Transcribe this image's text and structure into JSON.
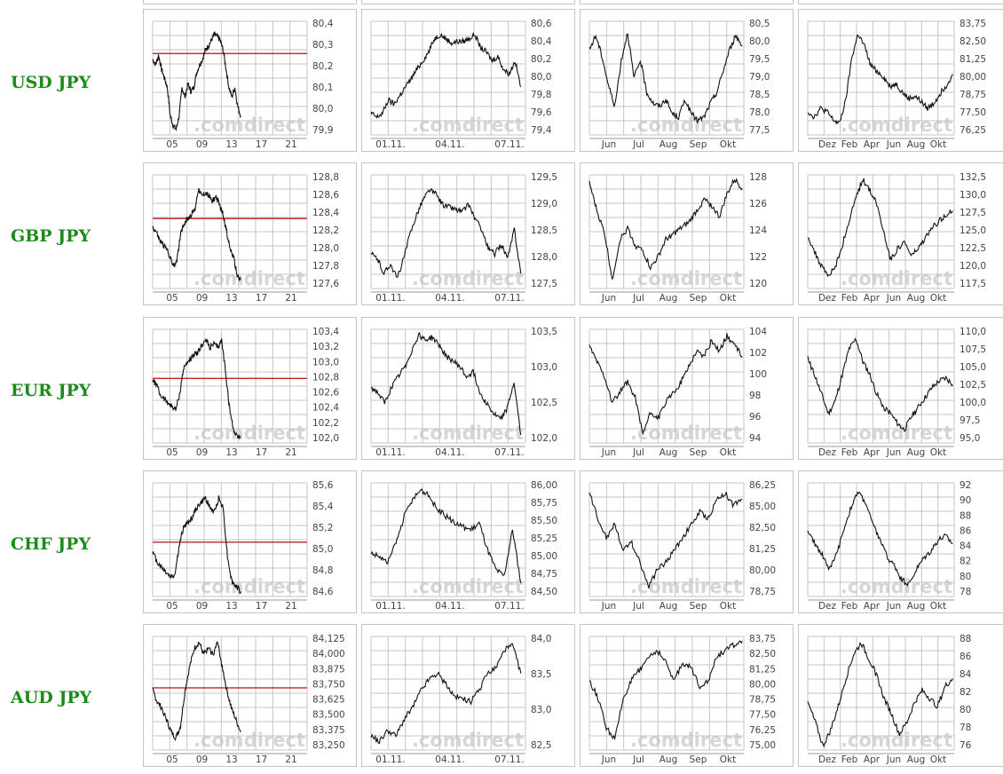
{
  "rows": [
    {
      "label": "USD JPY",
      "panels": [
        {
          "yticks": [
            "80,4",
            "80,3",
            "80,2",
            "80,1",
            "80,0",
            "79,9"
          ],
          "ymin": 79.85,
          "ymax": 80.45,
          "xticks": [
            "05",
            "09",
            "13",
            "17",
            "21"
          ],
          "ref": 80.28,
          "series": [
            80.25,
            80.22,
            80.27,
            80.2,
            80.15,
            80.1,
            79.95,
            79.9,
            79.88,
            79.95,
            80.1,
            80.05,
            80.12,
            80.08,
            80.1,
            80.18,
            80.22,
            80.25,
            80.3,
            80.32,
            80.35,
            80.38,
            80.37,
            80.35,
            80.3,
            80.2,
            80.1,
            80.05,
            80.1,
            80.0,
            79.95
          ]
        },
        {
          "yticks": [
            "80,6",
            "80,4",
            "80,2",
            "80,0",
            "79,8",
            "79,6",
            "79,4"
          ],
          "ymin": 79.35,
          "ymax": 80.65,
          "xticks": [
            "01.11.",
            "04.11.",
            "07.11."
          ],
          "series": [
            79.6,
            79.55,
            79.6,
            79.75,
            79.7,
            79.8,
            79.9,
            80.0,
            80.1,
            80.2,
            80.3,
            80.45,
            80.5,
            80.45,
            80.4,
            80.42,
            80.42,
            80.45,
            80.5,
            80.35,
            80.3,
            80.2,
            80.25,
            80.1,
            80.05,
            80.2,
            79.9
          ]
        },
        {
          "yticks": [
            "80,5",
            "80,0",
            "79,5",
            "79,0",
            "78,5",
            "78,0",
            "77,5"
          ],
          "ymin": 77.4,
          "ymax": 80.6,
          "xticks": [
            "Jun",
            "Jul",
            "Aug",
            "Sep",
            "Okt"
          ],
          "series": [
            79.8,
            80.2,
            79.6,
            78.8,
            78.2,
            79.5,
            80.3,
            79.0,
            79.5,
            78.6,
            78.3,
            78.2,
            78.4,
            78.0,
            77.9,
            78.4,
            78.0,
            77.8,
            77.9,
            78.3,
            78.6,
            79.2,
            79.8,
            80.2,
            79.9
          ]
        },
        {
          "yticks": [
            "83,75",
            "82,50",
            "81,25",
            "80,00",
            "78,75",
            "77,50",
            "76,25"
          ],
          "ymin": 75.9,
          "ymax": 84.1,
          "xticks": [
            "Dez",
            "Feb",
            "Apr",
            "Jun",
            "Aug",
            "Okt"
          ],
          "series": [
            77.6,
            77.2,
            77.8,
            77.6,
            77.0,
            76.7,
            78.3,
            81.5,
            83.2,
            82.3,
            80.9,
            80.5,
            80.1,
            79.4,
            79.6,
            79.0,
            78.5,
            78.7,
            78.3,
            77.8,
            78.2,
            78.9,
            79.5,
            80.3
          ]
        }
      ]
    },
    {
      "label": "GBP JPY",
      "panels": [
        {
          "yticks": [
            "128,8",
            "128,6",
            "128,4",
            "128,2",
            "128,0",
            "127,8",
            "127,6"
          ],
          "ymin": 127.55,
          "ymax": 128.85,
          "xticks": [
            "05",
            "09",
            "13",
            "17",
            "21"
          ],
          "ref": 128.35,
          "series": [
            128.25,
            128.2,
            128.1,
            128.05,
            128.0,
            127.9,
            127.8,
            127.9,
            128.2,
            128.3,
            128.35,
            128.4,
            128.45,
            128.7,
            128.6,
            128.65,
            128.6,
            128.55,
            128.6,
            128.5,
            128.4,
            128.2,
            128.0,
            127.9,
            127.7,
            127.65
          ]
        },
        {
          "yticks": [
            "129,5",
            "129,0",
            "128,5",
            "128,0",
            "127,5"
          ],
          "ymin": 127.3,
          "ymax": 129.6,
          "xticks": [
            "01.11.",
            "04.11.",
            "07.11."
          ],
          "series": [
            128.0,
            127.9,
            127.6,
            127.8,
            127.5,
            127.9,
            128.4,
            128.8,
            129.1,
            129.3,
            129.2,
            129.0,
            128.95,
            128.9,
            128.85,
            129.0,
            128.7,
            128.5,
            128.1,
            128.0,
            128.2,
            127.9,
            128.5,
            127.6
          ]
        },
        {
          "yticks": [
            "128",
            "126",
            "124",
            "122",
            "120"
          ],
          "ymin": 119.2,
          "ymax": 129.2,
          "xticks": [
            "Jun",
            "Jul",
            "Aug",
            "Sep",
            "Okt"
          ],
          "series": [
            128.5,
            126.0,
            124.0,
            120.0,
            123.5,
            124.5,
            123.0,
            122.5,
            121.0,
            122.0,
            123.5,
            124.0,
            124.5,
            125.0,
            126.0,
            127.0,
            126.5,
            125.5,
            127.5,
            128.8,
            128.0
          ]
        },
        {
          "yticks": [
            "132,5",
            "130,0",
            "127,5",
            "125,0",
            "122,5",
            "120,0",
            "117,5"
          ],
          "ymin": 116.8,
          "ymax": 133.2,
          "xticks": [
            "Dez",
            "Feb",
            "Apr",
            "Jun",
            "Aug",
            "Okt"
          ],
          "series": [
            124.5,
            122.0,
            120.0,
            118.5,
            120.0,
            123.0,
            126.5,
            130.0,
            132.5,
            131.0,
            129.0,
            125.0,
            121.0,
            122.5,
            123.5,
            121.5,
            122.5,
            124.0,
            125.5,
            126.5,
            127.5,
            128.0
          ]
        }
      ]
    },
    {
      "label": "EUR JPY",
      "panels": [
        {
          "yticks": [
            "103,4",
            "103,2",
            "103,0",
            "102,8",
            "102,6",
            "102,4",
            "102,2",
            "102,0"
          ],
          "ymin": 101.9,
          "ymax": 103.45,
          "xticks": [
            "05",
            "09",
            "13",
            "17",
            "21"
          ],
          "ref": 102.78,
          "series": [
            102.75,
            102.7,
            102.55,
            102.5,
            102.45,
            102.4,
            102.35,
            102.55,
            102.9,
            103.0,
            103.05,
            103.1,
            103.15,
            103.25,
            103.3,
            103.2,
            103.25,
            103.2,
            103.3,
            102.9,
            102.4,
            102.1,
            102.0,
            101.98
          ]
        },
        {
          "yticks": [
            "103,5",
            "103,0",
            "102,5",
            "102,0"
          ],
          "ymin": 101.85,
          "ymax": 104.0,
          "xticks": [
            "01.11.",
            "04.11.",
            "07.11."
          ],
          "series": [
            102.9,
            102.8,
            102.6,
            102.9,
            103.1,
            103.3,
            103.6,
            103.9,
            103.8,
            103.85,
            103.7,
            103.5,
            103.4,
            103.3,
            103.1,
            103.2,
            102.8,
            102.6,
            102.4,
            102.3,
            102.5,
            103.0,
            102.0
          ]
        },
        {
          "yticks": [
            "104",
            "102",
            "100",
            "98",
            "96",
            "94"
          ],
          "ymin": 93.6,
          "ymax": 104.6,
          "xticks": [
            "Jun",
            "Jul",
            "Aug",
            "Sep",
            "Okt"
          ],
          "series": [
            103.0,
            101.5,
            100.0,
            97.5,
            98.5,
            99.5,
            98.0,
            94.5,
            96.5,
            96.0,
            97.5,
            98.5,
            99.5,
            101.0,
            102.5,
            102.0,
            103.5,
            102.5,
            104.0,
            103.0,
            102.0
          ]
        },
        {
          "yticks": [
            "110,0",
            "107,5",
            "105,0",
            "102,5",
            "100,0",
            "97,5",
            "95,0"
          ],
          "ymin": 93.5,
          "ymax": 111.0,
          "xticks": [
            "Dez",
            "Feb",
            "Apr",
            "Jun",
            "Aug",
            "Okt"
          ],
          "series": [
            106.5,
            104.0,
            101.0,
            98.0,
            100.0,
            104.0,
            108.0,
            109.5,
            106.0,
            104.0,
            101.0,
            99.0,
            98.0,
            96.5,
            95.5,
            97.5,
            99.0,
            100.5,
            102.0,
            103.0,
            103.5,
            102.5
          ]
        }
      ]
    },
    {
      "label": "CHF JPY",
      "panels": [
        {
          "yticks": [
            "85,6",
            "85,4",
            "85,2",
            "85,0",
            "84,8",
            "84,6"
          ],
          "ymin": 84.5,
          "ymax": 85.65,
          "xticks": [
            "05",
            "09",
            "13",
            "17",
            "21"
          ],
          "ref": 85.05,
          "series": [
            84.95,
            84.85,
            84.8,
            84.75,
            84.7,
            84.72,
            85.0,
            85.2,
            85.25,
            85.3,
            85.4,
            85.45,
            85.5,
            85.4,
            85.35,
            85.5,
            85.4,
            84.9,
            84.65,
            84.6,
            84.55
          ]
        },
        {
          "yticks": [
            "86,00",
            "85,75",
            "85,50",
            "85,25",
            "85,00",
            "84,75",
            "84,50"
          ],
          "ymin": 84.4,
          "ymax": 86.1,
          "xticks": [
            "01.11.",
            "04.11.",
            "07.11."
          ],
          "series": [
            85.05,
            85.0,
            84.9,
            85.2,
            85.6,
            85.85,
            86.0,
            85.9,
            85.7,
            85.6,
            85.5,
            85.45,
            85.4,
            85.5,
            85.1,
            84.8,
            84.7,
            85.4,
            84.6
          ]
        },
        {
          "yticks": [
            "86,25",
            "85,00",
            "82,50",
            "81,25",
            "80,00",
            "78,75"
          ],
          "ymin": 77.8,
          "ymax": 86.8,
          "xticks": [
            "Jun",
            "Jul",
            "Aug",
            "Sep",
            "Okt"
          ],
          "series": [
            86.0,
            84.0,
            82.5,
            83.5,
            81.5,
            82.0,
            80.5,
            78.5,
            80.0,
            80.5,
            81.5,
            82.5,
            83.5,
            84.5,
            84.0,
            85.5,
            86.0,
            85.0,
            85.5
          ]
        },
        {
          "yticks": [
            "92",
            "90",
            "88",
            "86",
            "84",
            "82",
            "80",
            "78"
          ],
          "ymin": 77.3,
          "ymax": 92.7,
          "xticks": [
            "Dez",
            "Feb",
            "Apr",
            "Jun",
            "Aug",
            "Okt"
          ],
          "series": [
            86.0,
            84.5,
            83.0,
            81.0,
            83.0,
            86.5,
            89.5,
            91.5,
            90.0,
            87.0,
            85.0,
            82.5,
            81.5,
            79.5,
            79.0,
            81.0,
            82.5,
            83.5,
            85.0,
            85.5,
            84.5
          ]
        }
      ]
    },
    {
      "label": "AUD JPY",
      "panels": [
        {
          "yticks": [
            "84,125",
            "84,000",
            "83,875",
            "83,750",
            "83,625",
            "83,500",
            "83,375",
            "83,250"
          ],
          "ymin": 83.2,
          "ymax": 84.15,
          "xticks": [
            "05",
            "09",
            "13",
            "17",
            "21"
          ],
          "ref": 83.72,
          "series": [
            83.7,
            83.6,
            83.55,
            83.45,
            83.35,
            83.3,
            83.4,
            83.7,
            83.9,
            84.05,
            84.1,
            84.0,
            84.05,
            84.0,
            84.1,
            83.9,
            83.7,
            83.55,
            83.45,
            83.35
          ]
        },
        {
          "yticks": [
            "84,0",
            "83,5",
            "83,0",
            "82,5"
          ],
          "ymin": 82.15,
          "ymax": 84.15,
          "xticks": [
            "01.11.",
            "04.11.",
            "07.11."
          ],
          "series": [
            82.4,
            82.3,
            82.5,
            82.4,
            82.7,
            82.9,
            83.2,
            83.4,
            83.5,
            83.3,
            83.1,
            83.05,
            83.0,
            83.2,
            83.5,
            83.6,
            83.9,
            84.0,
            83.5
          ]
        },
        {
          "yticks": [
            "83,75",
            "82,50",
            "81,25",
            "80,00",
            "78,75",
            "77,50",
            "76,25",
            "75,00"
          ],
          "ymin": 74.6,
          "ymax": 84.2,
          "xticks": [
            "Jun",
            "Jul",
            "Aug",
            "Sep",
            "Okt"
          ],
          "series": [
            80.5,
            79.0,
            76.5,
            75.5,
            79.0,
            80.5,
            81.5,
            82.5,
            83.0,
            82.0,
            80.5,
            82.0,
            81.5,
            80.0,
            80.5,
            82.5,
            83.0,
            83.5,
            83.8
          ]
        },
        {
          "yticks": [
            "88",
            "86",
            "84",
            "82",
            "80",
            "78",
            "76"
          ],
          "ymin": 74.5,
          "ymax": 88.8,
          "xticks": [
            "Dez",
            "Feb",
            "Apr",
            "Jun",
            "Aug",
            "Okt"
          ],
          "series": [
            80.5,
            78.0,
            75.0,
            77.0,
            80.0,
            83.5,
            86.5,
            88.0,
            86.0,
            84.0,
            81.0,
            79.0,
            76.5,
            78.0,
            80.5,
            82.0,
            81.0,
            80.0,
            82.5,
            83.5
          ]
        }
      ]
    }
  ],
  "watermark": ".comdirect"
}
